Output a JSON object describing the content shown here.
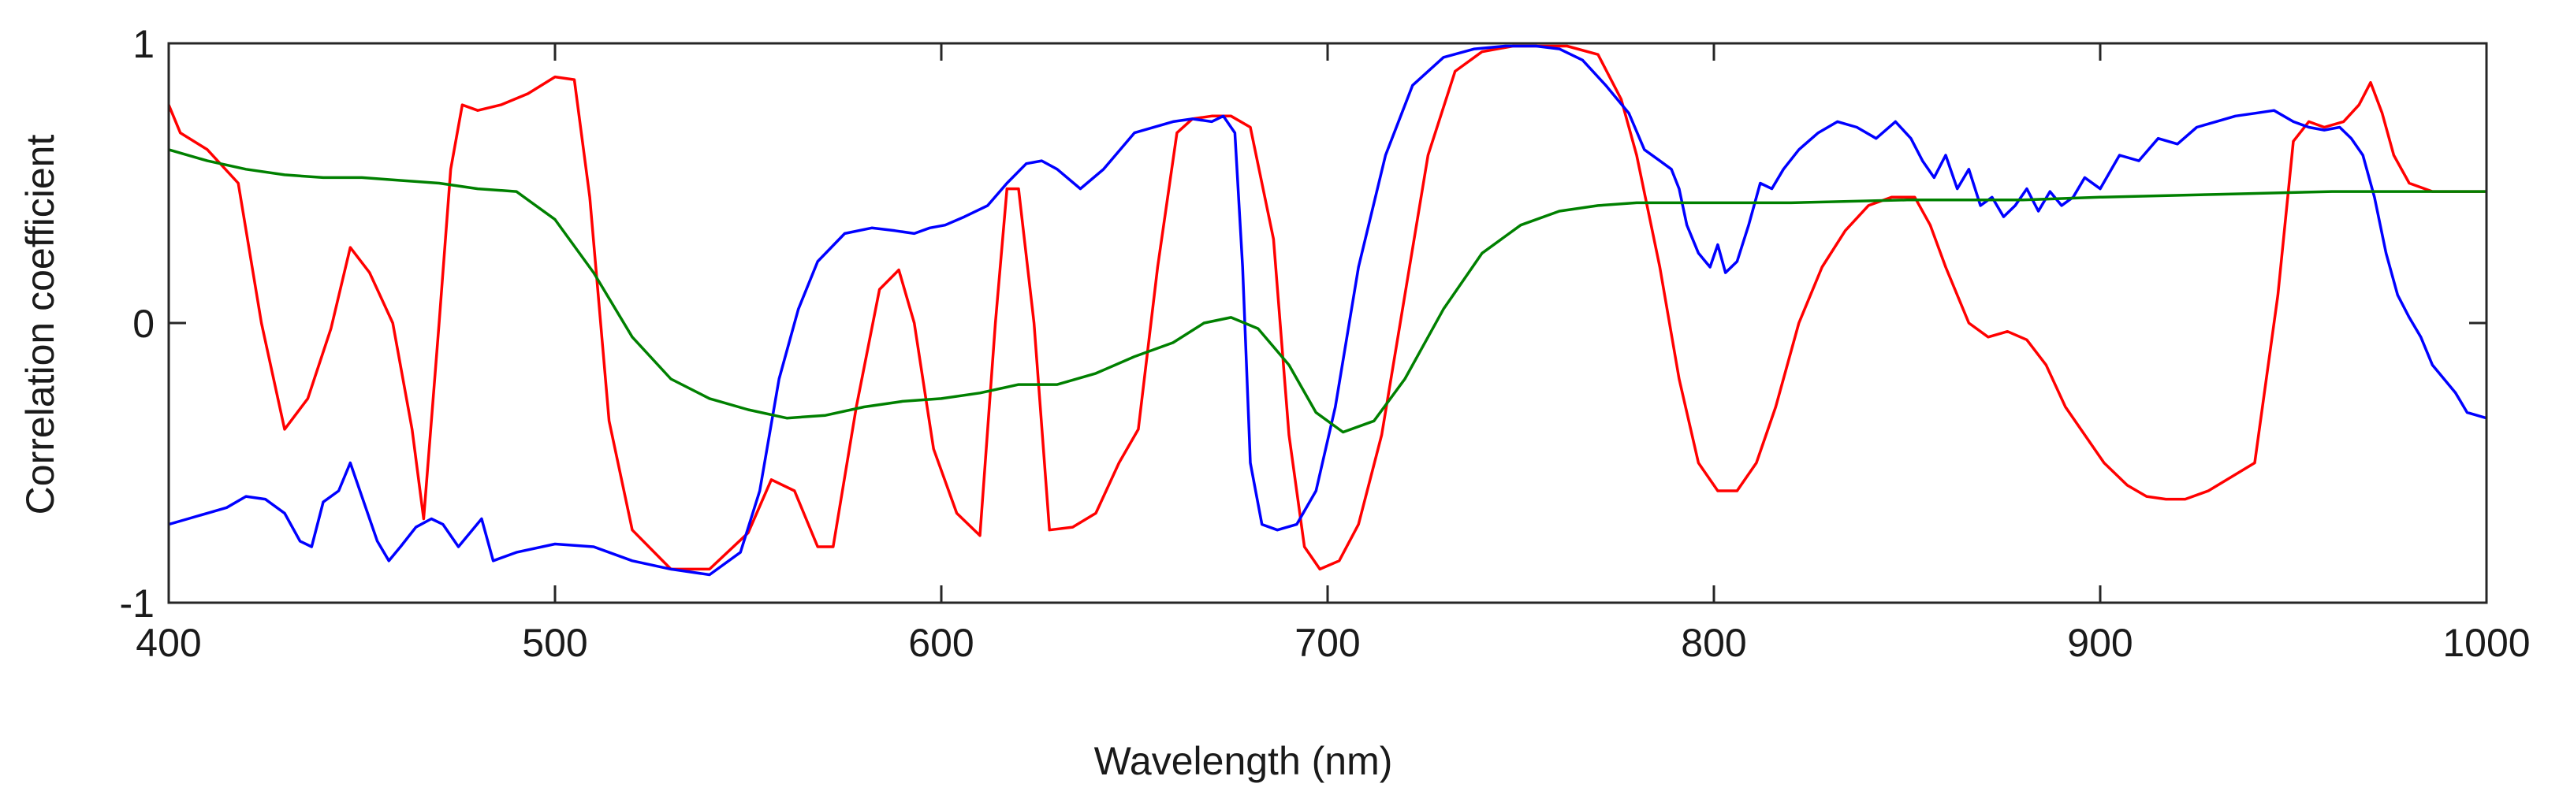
{
  "chart_data": {
    "type": "line",
    "title": "",
    "xlabel": "Wavelength (nm)",
    "ylabel": "Correlation coefficient",
    "xlim": [
      400,
      1000
    ],
    "ylim": [
      -1,
      1
    ],
    "xticks": [
      400,
      500,
      600,
      700,
      800,
      900,
      1000
    ],
    "xtick_labels": [
      "400",
      "500",
      "600",
      "700",
      "800",
      "900",
      "1000"
    ],
    "yticks": [
      -1,
      0,
      1
    ],
    "ytick_labels": [
      "-1",
      "0",
      "1"
    ],
    "grid": false,
    "legend": null,
    "series": [
      {
        "name": "red",
        "color": "#ff0000",
        "x": [
          400,
          403,
          410,
          418,
          424,
          430,
          436,
          442,
          447,
          452,
          458,
          463,
          466,
          470,
          473,
          476,
          480,
          486,
          493,
          500,
          505,
          509,
          514,
          520,
          530,
          540,
          550,
          556,
          562,
          568,
          572,
          578,
          584,
          589,
          593,
          598,
          604,
          610,
          614,
          617,
          620,
          624,
          628,
          634,
          640,
          646,
          651,
          656,
          661,
          665,
          670,
          675,
          680,
          686,
          690,
          694,
          698,
          703,
          708,
          714,
          720,
          726,
          733,
          740,
          748,
          755,
          762,
          770,
          776,
          780,
          786,
          791,
          796,
          801,
          806,
          811,
          816,
          822,
          828,
          834,
          840,
          846,
          852,
          856,
          860,
          866,
          871,
          876,
          881,
          886,
          891,
          896,
          901,
          907,
          912,
          917,
          922,
          928,
          934,
          940,
          946,
          950,
          954,
          958,
          963,
          967,
          970,
          973,
          976,
          980,
          986,
          993,
          1000
        ],
        "y": [
          0.78,
          0.68,
          0.62,
          0.5,
          0.0,
          -0.38,
          -0.27,
          -0.02,
          0.27,
          0.18,
          0.0,
          -0.38,
          -0.7,
          0.0,
          0.55,
          0.78,
          0.76,
          0.78,
          0.82,
          0.88,
          0.87,
          0.45,
          -0.35,
          -0.74,
          -0.88,
          -0.88,
          -0.75,
          -0.56,
          -0.6,
          -0.8,
          -0.8,
          -0.3,
          0.12,
          0.19,
          0.0,
          -0.45,
          -0.68,
          -0.76,
          0.0,
          0.48,
          0.48,
          0.0,
          -0.74,
          -0.73,
          -0.68,
          -0.5,
          -0.38,
          0.2,
          0.68,
          0.73,
          0.74,
          0.74,
          0.7,
          0.3,
          -0.4,
          -0.8,
          -0.88,
          -0.85,
          -0.72,
          -0.4,
          0.1,
          0.6,
          0.9,
          0.97,
          0.99,
          0.99,
          0.99,
          0.96,
          0.8,
          0.6,
          0.2,
          -0.2,
          -0.5,
          -0.6,
          -0.6,
          -0.5,
          -0.3,
          0.0,
          0.2,
          0.33,
          0.42,
          0.45,
          0.45,
          0.35,
          0.2,
          0.0,
          -0.05,
          -0.03,
          -0.06,
          -0.15,
          -0.3,
          -0.4,
          -0.5,
          -0.58,
          -0.62,
          -0.63,
          -0.63,
          -0.6,
          -0.55,
          -0.5,
          0.1,
          0.65,
          0.72,
          0.7,
          0.72,
          0.78,
          0.86,
          0.75,
          0.6,
          0.5,
          0.47,
          0.47,
          0.47
        ]
      },
      {
        "name": "blue",
        "color": "#0000ff",
        "x": [
          400,
          405,
          410,
          415,
          420,
          425,
          430,
          434,
          437,
          440,
          444,
          447,
          450,
          454,
          457,
          460,
          464,
          468,
          471,
          475,
          478,
          481,
          484,
          490,
          500,
          510,
          520,
          530,
          540,
          548,
          553,
          558,
          563,
          568,
          575,
          582,
          588,
          593,
          597,
          601,
          606,
          612,
          617,
          622,
          626,
          630,
          636,
          642,
          650,
          660,
          665,
          670,
          673,
          676,
          678,
          680,
          683,
          687,
          692,
          697,
          702,
          708,
          715,
          722,
          730,
          738,
          746,
          754,
          760,
          766,
          772,
          778,
          782,
          786,
          789,
          791,
          793,
          796,
          799,
          801,
          803,
          806,
          809,
          812,
          815,
          818,
          822,
          827,
          832,
          837,
          842,
          847,
          851,
          854,
          857,
          860,
          863,
          866,
          869,
          872,
          875,
          878,
          881,
          884,
          887,
          890,
          893,
          896,
          900,
          905,
          910,
          915,
          920,
          925,
          930,
          935,
          940,
          945,
          950,
          954,
          958,
          962,
          965,
          968,
          971,
          974,
          977,
          980,
          983,
          986,
          989,
          992,
          995,
          1000
        ],
        "y": [
          -0.72,
          -0.7,
          -0.68,
          -0.66,
          -0.62,
          -0.63,
          -0.68,
          -0.78,
          -0.8,
          -0.64,
          -0.6,
          -0.5,
          -0.62,
          -0.78,
          -0.85,
          -0.8,
          -0.73,
          -0.7,
          -0.72,
          -0.8,
          -0.75,
          -0.7,
          -0.85,
          -0.82,
          -0.79,
          -0.8,
          -0.85,
          -0.88,
          -0.9,
          -0.82,
          -0.6,
          -0.2,
          0.05,
          0.22,
          0.32,
          0.34,
          0.33,
          0.32,
          0.34,
          0.35,
          0.38,
          0.42,
          0.5,
          0.57,
          0.58,
          0.55,
          0.48,
          0.55,
          0.68,
          0.72,
          0.73,
          0.72,
          0.74,
          0.68,
          0.2,
          -0.5,
          -0.72,
          -0.74,
          -0.72,
          -0.6,
          -0.3,
          0.2,
          0.6,
          0.85,
          0.95,
          0.98,
          0.99,
          0.99,
          0.98,
          0.94,
          0.85,
          0.75,
          0.62,
          0.58,
          0.55,
          0.48,
          0.35,
          0.25,
          0.2,
          0.28,
          0.18,
          0.22,
          0.35,
          0.5,
          0.48,
          0.55,
          0.62,
          0.68,
          0.72,
          0.7,
          0.66,
          0.72,
          0.66,
          0.58,
          0.52,
          0.6,
          0.48,
          0.55,
          0.42,
          0.45,
          0.38,
          0.42,
          0.48,
          0.4,
          0.47,
          0.42,
          0.45,
          0.52,
          0.48,
          0.6,
          0.58,
          0.66,
          0.64,
          0.7,
          0.72,
          0.74,
          0.75,
          0.76,
          0.72,
          0.7,
          0.69,
          0.7,
          0.66,
          0.6,
          0.45,
          0.25,
          0.1,
          0.02,
          -0.05,
          -0.15,
          -0.2,
          -0.25,
          -0.32,
          -0.34
        ]
      },
      {
        "name": "green",
        "color": "#008000",
        "x": [
          400,
          410,
          420,
          430,
          440,
          450,
          460,
          470,
          480,
          490,
          500,
          510,
          520,
          530,
          540,
          550,
          560,
          570,
          580,
          590,
          600,
          610,
          620,
          630,
          640,
          650,
          660,
          668,
          675,
          682,
          690,
          697,
          704,
          712,
          720,
          730,
          740,
          750,
          760,
          770,
          780,
          800,
          820,
          850,
          880,
          900,
          930,
          960,
          980,
          1000
        ],
        "y": [
          0.62,
          0.58,
          0.55,
          0.53,
          0.52,
          0.52,
          0.51,
          0.5,
          0.48,
          0.47,
          0.37,
          0.18,
          -0.05,
          -0.2,
          -0.27,
          -0.31,
          -0.34,
          -0.33,
          -0.3,
          -0.28,
          -0.27,
          -0.25,
          -0.22,
          -0.22,
          -0.18,
          -0.12,
          -0.07,
          0.0,
          0.02,
          -0.02,
          -0.15,
          -0.32,
          -0.39,
          -0.35,
          -0.2,
          0.05,
          0.25,
          0.35,
          0.4,
          0.42,
          0.43,
          0.43,
          0.43,
          0.44,
          0.44,
          0.45,
          0.46,
          0.47,
          0.47,
          0.47
        ]
      }
    ]
  }
}
